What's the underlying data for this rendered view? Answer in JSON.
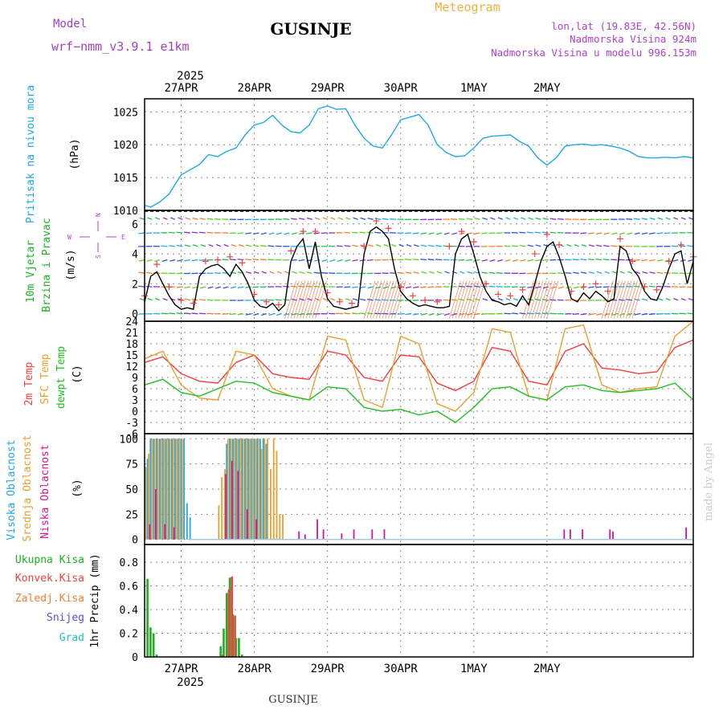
{
  "header": {
    "title": "GUSINJE",
    "subtitle": "Meteogram",
    "model_label": "Model",
    "model_name": "wrf−nmm_v3.9.1  e1km",
    "location": "lon,lat (19.83E, 42.56N)",
    "elevation": "Nadmorska Visina 924m",
    "model_elevation": "Nadmorska Visina u modelu 996.153m",
    "footer_station": "GUSINJE",
    "credit": "made by Angel",
    "colors": {
      "title": "#000000",
      "subtitle": "#f0b040",
      "meta": "#b040d0",
      "model": "#a040c0"
    }
  },
  "time_axis": {
    "year_label": "2025",
    "day_labels": [
      "27APR",
      "28APR",
      "29APR",
      "30APR",
      "1MAY",
      "2MAY"
    ]
  },
  "panel_labels": {
    "pressure": {
      "name": "Pritisak na nivou mora",
      "unit": "(hPa)",
      "color": "#20a8e8"
    },
    "wind": {
      "line1": "10m Vjetar",
      "line2": "Brzina i Pravac",
      "unit": "(m/s)",
      "compass": {
        "n": "N",
        "s": "S",
        "w": "W",
        "e": "E"
      },
      "color": "#20b020",
      "compass_color": "#b040d0"
    },
    "temp": {
      "t2m": "2m Temp",
      "tsfc": "SFC Temp",
      "dewp": "dewpt Temp",
      "unit": "(C)",
      "colors": {
        "t2m": "#f04040",
        "tsfc": "#e8a030",
        "dewp": "#20c020"
      }
    },
    "cloud": {
      "high": "Visoka Oblacnost",
      "mid": "Srednja Oblacnost",
      "low": "Niska Oblacnost",
      "unit": "(%)",
      "colors": {
        "high": "#20a8e8",
        "mid": "#e8a030",
        "low": "#d01890"
      }
    },
    "precip": {
      "total": "Ukupna Kisa",
      "conv": "Konvek.Kisa",
      "freezing": "Zaledj.Kisa",
      "snow": "Snijeg",
      "hail": "Grad",
      "title": "1hr Precip (mm)",
      "colors": {
        "total": "#20b020",
        "conv": "#f04040",
        "freezing": "#f08030",
        "snow": "#5050e0",
        "hail": "#20c0c0"
      }
    }
  },
  "chart_data": [
    {
      "type": "line",
      "title": "Pritisak na nivou mora",
      "ylabel": "(hPa)",
      "ylim": [
        1010,
        1027
      ],
      "yticks": [
        1010,
        1015,
        1020,
        1025
      ],
      "grid": true,
      "x_unit": "hours since 26APR 12UTC",
      "series": [
        {
          "name": "Pritisak na nivou mora",
          "color": "#20a8e8",
          "x": [
            0,
            2,
            5,
            8,
            12,
            15,
            18,
            21,
            24,
            27,
            30,
            33,
            36,
            39,
            42,
            45,
            48,
            51,
            54,
            57,
            60,
            63,
            66,
            69,
            72,
            75,
            78,
            81,
            84,
            87,
            90,
            93,
            96,
            99,
            102,
            105,
            108,
            111,
            114,
            117,
            120,
            123,
            126,
            129,
            132,
            135,
            138,
            141,
            144,
            147,
            150,
            153,
            156,
            159,
            162,
            165,
            168,
            171,
            174,
            177,
            180
          ],
          "values": [
            1010.8,
            1010.5,
            1011.3,
            1012.5,
            1015.4,
            1016.2,
            1017.0,
            1018.5,
            1018.2,
            1019.0,
            1019.5,
            1021.5,
            1023.0,
            1023.4,
            1024.5,
            1023.0,
            1022.0,
            1021.8,
            1023.0,
            1025.5,
            1025.9,
            1025.4,
            1025.5,
            1023.0,
            1021.0,
            1019.8,
            1019.5,
            1021.5,
            1023.8,
            1024.2,
            1024.6,
            1023.0,
            1020.0,
            1018.8,
            1018.2,
            1018.3,
            1019.5,
            1021.0,
            1021.3,
            1021.4,
            1021.5,
            1020.5,
            1019.8,
            1018.0,
            1016.9,
            1018.0,
            1019.8,
            1020.0,
            1020.1,
            1019.9,
            1020.0,
            1019.8,
            1019.5,
            1019.0,
            1018.2,
            1018.0,
            1018.0,
            1018.1,
            1018.0,
            1018.2,
            1018.0
          ]
        }
      ]
    },
    {
      "type": "line",
      "title": "10m Vjetar Brzina i Pravac",
      "ylabel": "(m/s)",
      "ylim": [
        -0.5,
        6.9
      ],
      "yticks": [
        0,
        2,
        4,
        6
      ],
      "grid": true,
      "x_unit": "hours since 26APR 12UTC",
      "series": [
        {
          "name": "Brzina",
          "color": "#000000",
          "x": [
            0,
            2,
            4,
            6,
            8,
            10,
            12,
            14,
            16,
            18,
            20,
            22,
            24,
            26,
            28,
            30,
            32,
            34,
            36,
            38,
            40,
            42,
            44,
            46,
            48,
            50,
            52,
            54,
            56,
            58,
            60,
            62,
            64,
            66,
            68,
            70,
            72,
            74,
            76,
            78,
            80,
            82,
            84,
            86,
            88,
            90,
            92,
            94,
            96,
            98,
            100,
            102,
            104,
            106,
            108,
            110,
            112,
            114,
            116,
            118,
            120,
            122,
            124,
            126,
            128,
            130,
            132,
            134,
            136,
            138,
            140,
            142,
            144,
            146,
            148,
            150,
            152,
            154,
            156,
            158,
            160,
            162,
            164,
            166,
            168,
            170,
            172,
            174,
            176,
            178,
            180
          ],
          "values": [
            0.8,
            2.5,
            2.8,
            2.0,
            1.2,
            0.6,
            0.3,
            0.4,
            0.3,
            2.5,
            3.0,
            3.2,
            3.3,
            3.0,
            2.5,
            3.3,
            2.8,
            2.0,
            0.9,
            0.5,
            0.4,
            0.7,
            0.2,
            0.6,
            3.5,
            4.5,
            5.0,
            3.0,
            4.8,
            2.5,
            1.0,
            0.5,
            0.4,
            0.3,
            0.4,
            0.5,
            4.0,
            5.5,
            5.8,
            5.5,
            5.0,
            3.0,
            1.5,
            1.0,
            0.7,
            0.5,
            0.6,
            0.5,
            0.4,
            0.4,
            0.5,
            4.0,
            5.0,
            5.3,
            4.0,
            2.5,
            1.5,
            0.9,
            0.8,
            0.6,
            0.7,
            0.5,
            1.2,
            0.6,
            2.0,
            3.5,
            4.5,
            4.8,
            3.8,
            2.5,
            1.0,
            0.8,
            1.4,
            1.0,
            1.5,
            1.2,
            0.8,
            1.0,
            4.5,
            4.2,
            3.0,
            2.5,
            1.5,
            1.0,
            0.9,
            1.8,
            3.0,
            4.0,
            4.2,
            2.0,
            3.5
          ]
        },
        {
          "name": "Udari",
          "color": "#f04040",
          "x": [
            0,
            4,
            8,
            12,
            16,
            20,
            24,
            28,
            32,
            36,
            40,
            44,
            48,
            52,
            56,
            60,
            64,
            68,
            72,
            76,
            80,
            84,
            88,
            92,
            96,
            100,
            104,
            108,
            112,
            116,
            120,
            124,
            128,
            132,
            136,
            140,
            144,
            148,
            152,
            156,
            160,
            164,
            168,
            172,
            176,
            180
          ],
          "values": [
            1.2,
            3.3,
            1.8,
            0.9,
            0.7,
            3.5,
            3.6,
            3.8,
            3.4,
            1.3,
            0.8,
            0.6,
            4.2,
            5.5,
            5.5,
            1.4,
            0.8,
            0.7,
            4.5,
            6.2,
            5.7,
            1.8,
            1.2,
            0.9,
            0.8,
            4.5,
            5.5,
            4.8,
            2.0,
            1.3,
            1.2,
            1.6,
            4.0,
            5.3,
            4.6,
            1.5,
            1.8,
            2.0,
            1.5,
            5.0,
            3.5,
            1.8,
            1.6,
            3.5,
            4.6,
            3.8
          ]
        }
      ]
    },
    {
      "type": "line",
      "title": "Temperatura",
      "ylabel": "(C)",
      "ylim": [
        -6,
        24
      ],
      "yticks": [
        -6,
        -3,
        0,
        3,
        6,
        9,
        12,
        15,
        18,
        21,
        24
      ],
      "grid": true,
      "x_unit": "hours since 26APR 12UTC",
      "series": [
        {
          "name": "2m Temp",
          "color": "#f04040",
          "x": [
            0,
            6,
            12,
            18,
            24,
            30,
            36,
            42,
            48,
            54,
            60,
            66,
            72,
            78,
            84,
            90,
            96,
            102,
            108,
            114,
            120,
            126,
            132,
            138,
            144,
            150,
            156,
            162,
            168,
            174,
            180
          ],
          "values": [
            13.0,
            14.5,
            10.0,
            8.0,
            7.5,
            13.0,
            15.0,
            10.0,
            9.0,
            8.5,
            16.0,
            15.0,
            9.0,
            8.0,
            15.0,
            14.5,
            7.5,
            5.5,
            8.0,
            17.0,
            16.0,
            8.0,
            7.0,
            16.0,
            18.0,
            11.5,
            11.0,
            10.0,
            10.5,
            17.0,
            19.0
          ]
        },
        {
          "name": "SFC Temp",
          "color": "#e8a030",
          "x": [
            0,
            6,
            12,
            18,
            24,
            30,
            36,
            42,
            48,
            54,
            60,
            66,
            72,
            78,
            84,
            90,
            96,
            102,
            108,
            114,
            120,
            126,
            132,
            138,
            144,
            150,
            156,
            162,
            168,
            174,
            180
          ],
          "values": [
            14.0,
            16.0,
            7.0,
            3.5,
            3.0,
            16.0,
            15.0,
            6.0,
            4.0,
            3.0,
            20.0,
            19.0,
            3.0,
            1.0,
            20.0,
            18.0,
            2.0,
            0.0,
            5.0,
            22.0,
            21.0,
            4.0,
            3.0,
            22.0,
            23.0,
            7.0,
            5.0,
            6.0,
            6.5,
            20.0,
            24.0
          ]
        },
        {
          "name": "dewpt Temp",
          "color": "#20c020",
          "x": [
            0,
            6,
            12,
            18,
            24,
            30,
            36,
            42,
            48,
            54,
            60,
            66,
            72,
            78,
            84,
            90,
            96,
            102,
            108,
            114,
            120,
            126,
            132,
            138,
            144,
            150,
            156,
            162,
            168,
            174,
            180
          ],
          "values": [
            7.0,
            8.5,
            5.0,
            4.0,
            6.0,
            8.0,
            7.5,
            5.0,
            4.0,
            3.0,
            6.5,
            6.0,
            1.0,
            0.0,
            0.5,
            -1.0,
            0.0,
            -3.0,
            1.0,
            6.0,
            6.5,
            4.0,
            3.0,
            6.5,
            7.0,
            5.5,
            5.0,
            5.5,
            6.0,
            7.5,
            3.0
          ]
        }
      ]
    },
    {
      "type": "bar",
      "title": "Oblacnost",
      "ylabel": "(%)",
      "ylim": [
        -5,
        105
      ],
      "yticks": [
        0,
        25,
        50,
        75,
        100
      ],
      "grid": true,
      "x_unit": "hours since 26APR 12UTC",
      "series": [
        {
          "name": "Visoka Oblacnost",
          "color": "#20a8e8",
          "x": [
            1,
            2,
            3,
            4,
            5,
            6,
            7,
            8,
            9,
            10,
            11,
            12,
            13,
            14,
            15,
            27,
            28,
            29,
            30,
            31,
            32,
            33,
            34,
            35,
            36,
            37,
            38,
            39,
            40
          ],
          "values": [
            80,
            100,
            100,
            100,
            100,
            100,
            100,
            100,
            100,
            100,
            100,
            100,
            100,
            36,
            22,
            95,
            100,
            100,
            100,
            100,
            100,
            100,
            100,
            100,
            100,
            100,
            100,
            100,
            95
          ]
        },
        {
          "name": "Srednja Oblacnost",
          "color": "#e8a030",
          "x": [
            0,
            1,
            2,
            3,
            4,
            5,
            6,
            7,
            8,
            9,
            10,
            11,
            12,
            24,
            25,
            26,
            27,
            28,
            29,
            30,
            31,
            32,
            33,
            34,
            35,
            36,
            37,
            38,
            39,
            40,
            41,
            42,
            43,
            44,
            45
          ],
          "values": [
            72,
            85,
            100,
            100,
            100,
            100,
            100,
            100,
            100,
            100,
            100,
            100,
            100,
            34,
            62,
            70,
            100,
            100,
            100,
            100,
            100,
            100,
            100,
            100,
            100,
            100,
            100,
            90,
            100,
            100,
            70,
            100,
            88,
            25,
            25
          ]
        },
        {
          "name": "Niska Oblacnost",
          "color": "#d01890",
          "x": [
            1,
            3,
            6,
            9,
            26,
            28,
            30,
            33,
            36,
            50,
            52,
            56,
            58,
            64,
            68,
            74,
            78,
            137,
            139,
            143,
            152,
            153,
            177
          ],
          "values": [
            15,
            50,
            15,
            12,
            65,
            78,
            68,
            30,
            20,
            8,
            5,
            20,
            10,
            6,
            10,
            10,
            10,
            10,
            10,
            10,
            10,
            8,
            12
          ]
        }
      ]
    },
    {
      "type": "bar",
      "title": "1hr Precip (mm)",
      "ylabel": "1hr Precip (mm)",
      "ylim": [
        0,
        0.95
      ],
      "yticks": [
        0,
        0.2,
        0.4,
        0.6,
        0.8
      ],
      "grid": true,
      "x_unit": "hours since 26APR 12UTC",
      "series": [
        {
          "name": "Ukupna Kisa",
          "color": "#20b020",
          "x": [
            1,
            2,
            3,
            4,
            25,
            26,
            27,
            28,
            29,
            30,
            31,
            32
          ],
          "values": [
            0.66,
            0.25,
            0.2,
            0.02,
            0.09,
            0.24,
            0.54,
            0.67,
            0.36,
            0.16,
            0.16,
            0.02
          ]
        },
        {
          "name": "Konvek.Kisa",
          "color": "#f04040",
          "x": [
            25,
            26,
            27,
            28,
            29
          ],
          "values": [
            0.02,
            0.0,
            0.57,
            0.68,
            0.35
          ]
        }
      ]
    }
  ]
}
